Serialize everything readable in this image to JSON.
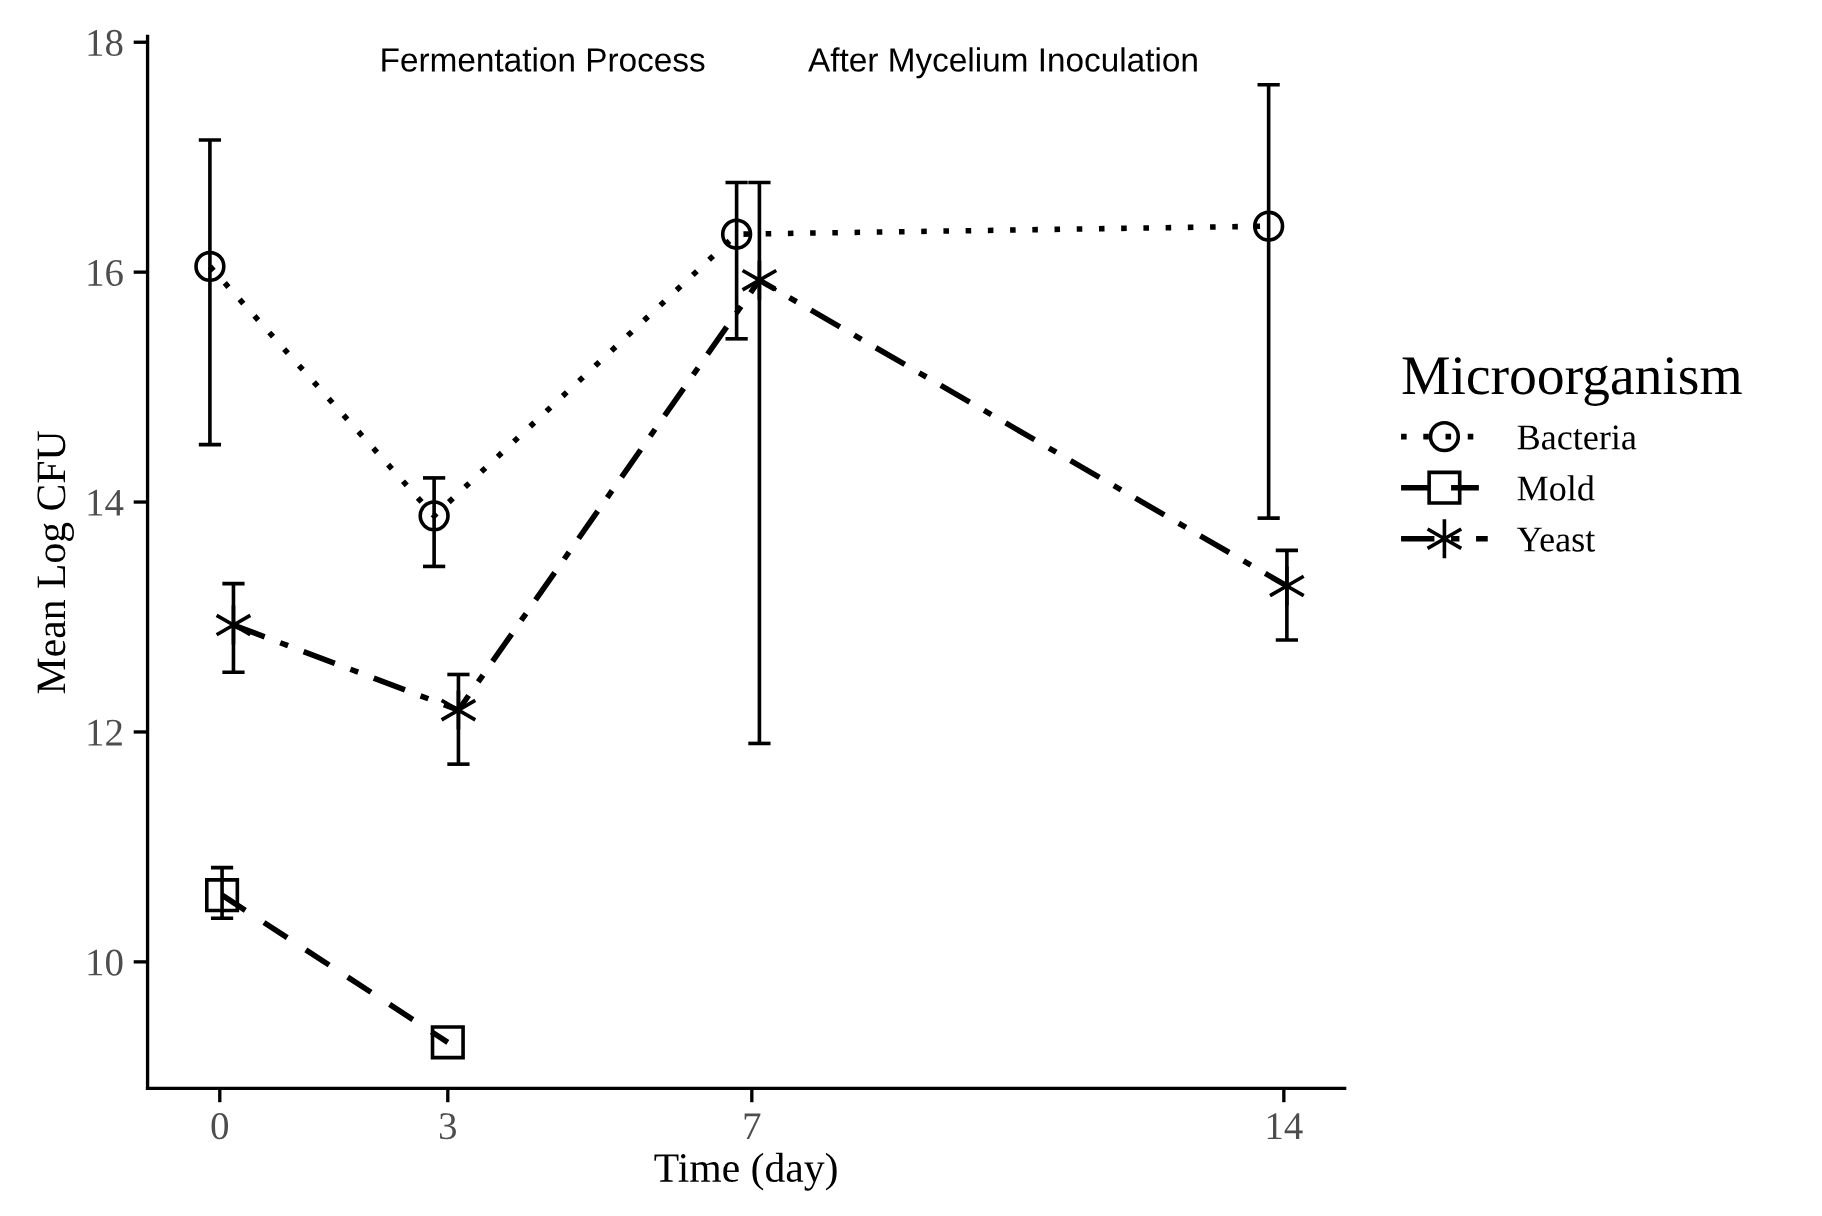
{
  "chart_data": {
    "type": "line",
    "xlabel": "Time (day)",
    "ylabel": "Mean Log CFU",
    "legend_title": "Microorganism",
    "legend": "right",
    "grid": false,
    "annotations": [
      "Fermentation Process",
      "After Mycelium Inoculation"
    ],
    "xlim": [
      -0.95,
      14.8
    ],
    "ylim": [
      8.9,
      18.05
    ],
    "xticks": [
      0,
      3,
      7,
      14
    ],
    "yticks": [
      10,
      12,
      14,
      16,
      18
    ],
    "series": [
      {
        "name": "Bacteria",
        "color": "#000000",
        "marker": "circle",
        "line_style": "dotted",
        "x": [
          -0.13,
          2.82,
          6.8,
          13.8
        ],
        "values": [
          16.05,
          13.88,
          16.33,
          16.4
        ],
        "errors": [
          [
            14.5,
            17.15
          ],
          [
            13.44,
            14.21
          ],
          [
            15.42,
            16.78
          ],
          [
            13.86,
            17.63
          ]
        ]
      },
      {
        "name": "Mold",
        "color": "#000000",
        "marker": "square",
        "line_style": "dashed",
        "x": [
          0.03,
          3.0
        ],
        "values": [
          10.58,
          9.3
        ],
        "errors": [
          [
            10.38,
            10.82
          ],
          null
        ]
      },
      {
        "name": "Yeast",
        "color": "#000000",
        "marker": "cross",
        "line_style": "dashdot",
        "x": [
          0.18,
          3.14,
          7.1,
          14.04
        ],
        "values": [
          12.93,
          12.19,
          15.93,
          13.27
        ],
        "errors": [
          [
            12.52,
            13.29
          ],
          [
            11.72,
            12.5
          ],
          [
            11.9,
            16.78
          ],
          [
            12.8,
            13.58
          ]
        ]
      }
    ]
  }
}
